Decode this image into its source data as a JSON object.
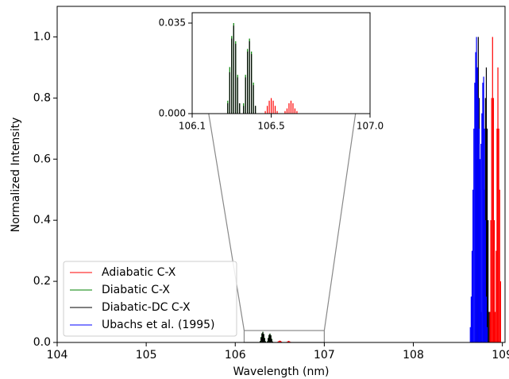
{
  "chart_data": {
    "type": "stem",
    "xlabel": "Wavelength (nm)",
    "ylabel": "Normalized Intensity",
    "xlim": [
      104,
      109.03
    ],
    "ylim": [
      0,
      1.1
    ],
    "xticks": [
      104,
      105,
      106,
      107,
      108,
      109
    ],
    "yticks": [
      {
        "value": 0,
        "label": "0.0"
      },
      0.2,
      0.4,
      0.6,
      0.8,
      {
        "value": 1,
        "label": "1.0"
      }
    ],
    "legend": "lower left",
    "series": [
      {
        "name": "Adiabatic C-X",
        "color": "#ff0000",
        "x": [
          106.47,
          106.48,
          106.49,
          106.5,
          106.51,
          106.52,
          106.53,
          106.57,
          106.58,
          106.59,
          106.6,
          106.61,
          106.62,
          106.63,
          108.86,
          108.87,
          108.88,
          108.89,
          108.9,
          108.91,
          108.92,
          108.93,
          108.94,
          108.95,
          108.96,
          108.97,
          108.98
        ],
        "values": [
          0.001,
          0.003,
          0.005,
          0.006,
          0.005,
          0.003,
          0.001,
          0.001,
          0.002,
          0.004,
          0.005,
          0.004,
          0.002,
          0.001,
          0.1,
          0.4,
          0.8,
          1.0,
          0.8,
          0.4,
          0.1,
          0.3,
          0.7,
          0.9,
          0.7,
          0.5,
          0.2
        ]
      },
      {
        "name": "Diabatic C-X",
        "color": "#008000",
        "x": [
          106.28,
          106.29,
          106.3,
          106.31,
          106.32,
          106.33,
          106.34,
          106.36,
          106.37,
          106.38,
          106.39,
          106.4,
          106.41,
          106.42
        ],
        "values": [
          0.005,
          0.018,
          0.03,
          0.035,
          0.028,
          0.015,
          0.004,
          0.004,
          0.015,
          0.025,
          0.029,
          0.024,
          0.012,
          0.003
        ]
      },
      {
        "name": "Diabatic-DC C-X",
        "color": "#000000",
        "x": [
          106.28,
          106.29,
          106.3,
          106.31,
          106.32,
          106.33,
          106.34,
          106.36,
          106.37,
          106.38,
          106.39,
          106.4,
          106.41,
          106.42,
          108.7,
          108.71,
          108.72,
          108.73,
          108.74,
          108.75,
          108.76,
          108.79,
          108.8,
          108.81,
          108.82,
          108.83,
          108.84,
          108.85
        ],
        "values": [
          0.004,
          0.016,
          0.029,
          0.034,
          0.027,
          0.014,
          0.004,
          0.003,
          0.014,
          0.024,
          0.028,
          0.023,
          0.011,
          0.003,
          0.2,
          0.6,
          0.9,
          1.0,
          0.8,
          0.5,
          0.1,
          0.2,
          0.5,
          0.8,
          0.9,
          0.7,
          0.4,
          0.1
        ]
      },
      {
        "name": "Ubachs et al. (1995)",
        "color": "#0000ff",
        "x": [
          108.64,
          108.65,
          108.66,
          108.67,
          108.68,
          108.69,
          108.7,
          108.71,
          108.72,
          108.73,
          108.74,
          108.75,
          108.76,
          108.77,
          108.78,
          108.79,
          108.8,
          108.81,
          108.82,
          108.83
        ],
        "values": [
          0.05,
          0.15,
          0.3,
          0.5,
          0.7,
          0.85,
          0.95,
          1.0,
          0.9,
          0.8,
          0.7,
          0.6,
          0.65,
          0.75,
          0.85,
          0.87,
          0.7,
          0.4,
          0.15,
          0.05
        ]
      }
    ],
    "inset": {
      "xlim": [
        106.1,
        107
      ],
      "ylim": [
        0,
        0.039
      ],
      "xticks": [
        106.1,
        106.5,
        {
          "value": 107,
          "label": "107.0"
        }
      ],
      "yticks": [
        {
          "value": 0,
          "label": "0.000"
        },
        {
          "value": 0.035,
          "label": "0.035"
        }
      ]
    }
  }
}
